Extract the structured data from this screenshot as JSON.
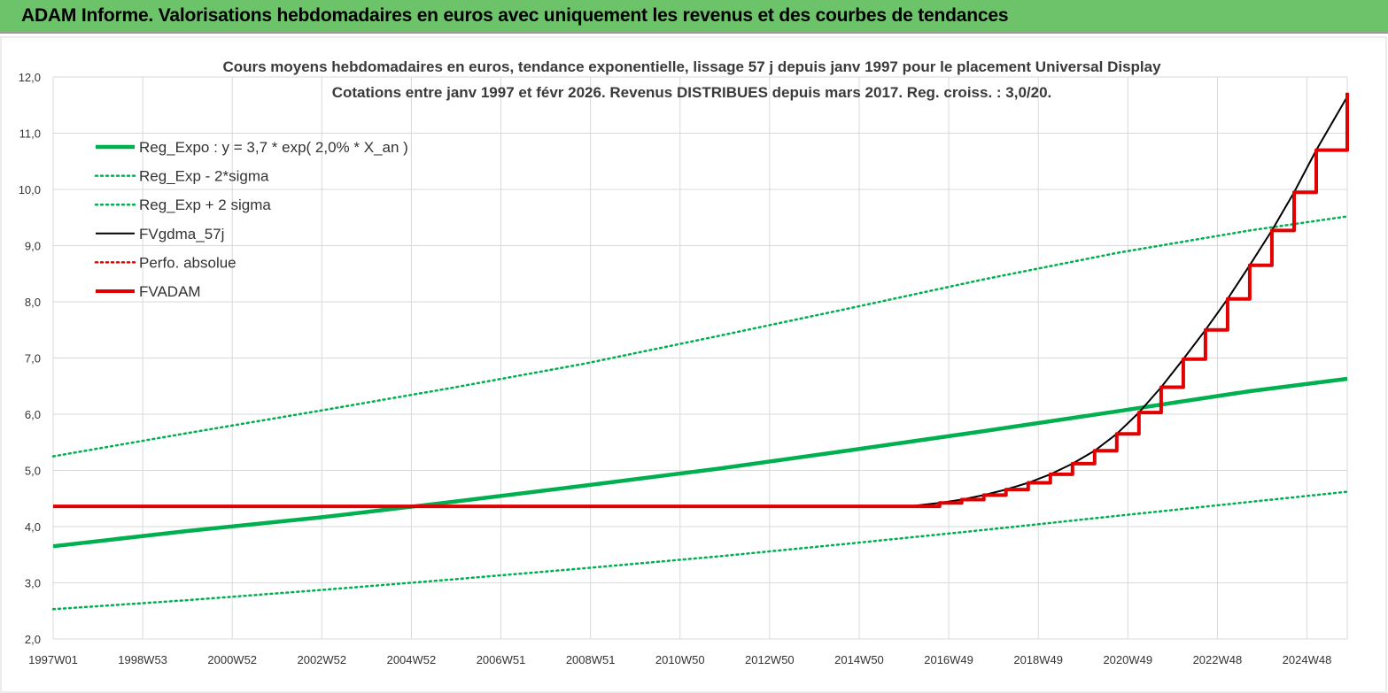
{
  "header": {
    "title": "ADAM Informe. Valorisations hebdomadaires en euros avec uniquement les revenus et des courbes de tendances"
  },
  "chart_data": {
    "type": "line",
    "title": "Cours moyens hebdomadaires en euros, tendance exponentielle, lissage 57 j depuis janv 1997 pour le placement Universal Display",
    "subtitle": "Cotations entre janv 1997 et févr 2026. Revenus DISTRIBUES depuis mars 2017. Reg. croiss. : 3,0/20.",
    "xlabel": "",
    "ylabel": "",
    "x_tick_labels": [
      "1997W01",
      "1998W53",
      "2000W52",
      "2002W52",
      "2004W52",
      "2006W51",
      "2008W51",
      "2010W50",
      "2012W50",
      "2014W50",
      "2016W49",
      "2018W49",
      "2020W49",
      "2022W48",
      "2024W48"
    ],
    "y_tick_labels": [
      "2,0",
      "3,0",
      "4,0",
      "5,0",
      "6,0",
      "7,0",
      "8,0",
      "9,0",
      "10,0",
      "11,0",
      "12,0"
    ],
    "xlim": [
      1997.0,
      2026.2
    ],
    "ylim": [
      2.0,
      12.0
    ],
    "grid": true,
    "legend_position": "top-left",
    "colors": {
      "green": "#00b050",
      "black": "#000000",
      "red": "#e00000"
    },
    "series": [
      {
        "name": "Reg_Expo : y = 3,7 * exp( 2,0% *  X_an )",
        "color": "#00b050",
        "style": "solid-thick",
        "x": [
          1997,
          2000,
          2003,
          2006,
          2009,
          2012,
          2015,
          2018,
          2021,
          2024,
          2026.2
        ],
        "y": [
          3.65,
          3.92,
          4.16,
          4.44,
          4.73,
          5.03,
          5.36,
          5.7,
          6.05,
          6.41,
          6.63
        ]
      },
      {
        "name": "Reg_Exp - 2*sigma",
        "color": "#00b050",
        "style": "dotted",
        "x": [
          1997,
          2000,
          2003,
          2006,
          2009,
          2012,
          2015,
          2018,
          2021,
          2024,
          2026.2
        ],
        "y": [
          2.53,
          2.69,
          2.87,
          3.06,
          3.26,
          3.47,
          3.7,
          3.94,
          4.19,
          4.44,
          4.62
        ]
      },
      {
        "name": "Reg_Exp + 2 sigma",
        "color": "#00b050",
        "style": "dotted",
        "x": [
          1997,
          2000,
          2003,
          2006,
          2009,
          2012,
          2015,
          2018,
          2021,
          2024,
          2026.2
        ],
        "y": [
          5.25,
          5.66,
          6.06,
          6.47,
          6.9,
          7.39,
          7.89,
          8.4,
          8.87,
          9.27,
          9.52
        ]
      },
      {
        "name": "FVgdma_57j",
        "color": "#000000",
        "style": "solid",
        "x": [
          1997,
          2005,
          2010,
          2016.3,
          2017.0,
          2017.5,
          2018.0,
          2018.5,
          2019.0,
          2019.5,
          2020.0,
          2020.5,
          2021.0,
          2021.5,
          2022.0,
          2022.5,
          2023.0,
          2023.5,
          2024.0,
          2024.5,
          2025.0,
          2025.5,
          2026.2
        ],
        "y": [
          4.36,
          4.36,
          4.36,
          4.36,
          4.42,
          4.48,
          4.56,
          4.66,
          4.78,
          4.93,
          5.12,
          5.35,
          5.65,
          6.03,
          6.48,
          6.98,
          7.5,
          8.05,
          8.65,
          9.27,
          9.95,
          10.7,
          11.65
        ]
      },
      {
        "name": "Perfo. absolue",
        "color": "#e00000",
        "style": "dotted",
        "x": [],
        "y": []
      },
      {
        "name": "FVADAM",
        "color": "#e00000",
        "style": "solid-thick-stepped",
        "x": [
          1997,
          2005,
          2010,
          2016.3,
          2017.0,
          2017.5,
          2018.0,
          2018.5,
          2019.0,
          2019.5,
          2020.0,
          2020.5,
          2021.0,
          2021.5,
          2022.0,
          2022.5,
          2023.0,
          2023.5,
          2024.0,
          2024.5,
          2025.0,
          2025.5,
          2026.2
        ],
        "y": [
          4.36,
          4.36,
          4.36,
          4.36,
          4.42,
          4.48,
          4.56,
          4.66,
          4.78,
          4.93,
          5.12,
          5.35,
          5.65,
          6.03,
          6.48,
          6.98,
          7.5,
          8.05,
          8.65,
          9.27,
          9.95,
          10.7,
          11.72
        ]
      }
    ]
  }
}
